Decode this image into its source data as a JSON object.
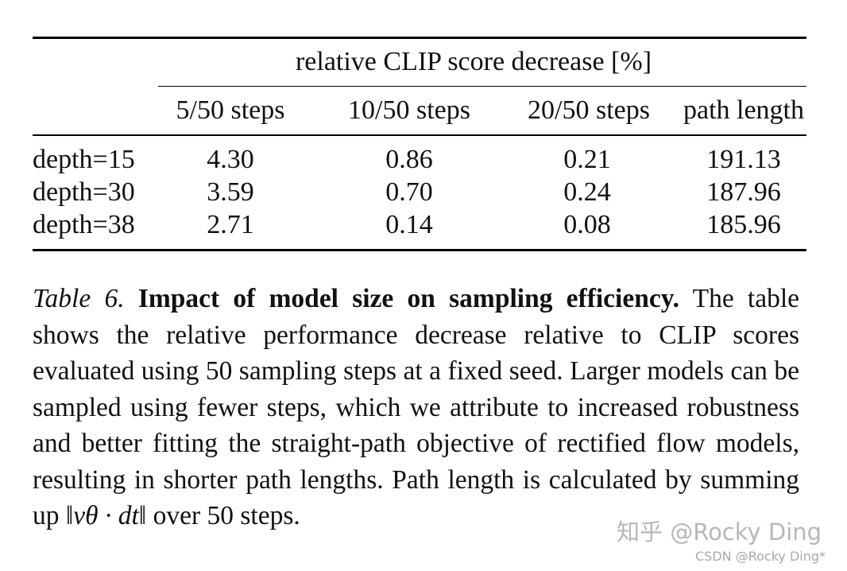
{
  "table": {
    "group_header": "relative CLIP score decrease [%]",
    "columns": [
      "5/50 steps",
      "10/50 steps",
      "20/50 steps",
      "path length"
    ],
    "rows": [
      {
        "label": "depth=15",
        "values": [
          "4.30",
          "0.86",
          "0.21",
          "191.13"
        ]
      },
      {
        "label": "depth=30",
        "values": [
          "3.59",
          "0.70",
          "0.24",
          "187.96"
        ]
      },
      {
        "label": "depth=38",
        "values": [
          "2.71",
          "0.14",
          "0.08",
          "185.96"
        ]
      }
    ]
  },
  "caption": {
    "label": "Table 6.",
    "title": "Impact of model size on sampling efficiency.",
    "body": "The table shows the relative performance decrease relative to CLIP scores evaluated using 50 sampling steps at a fixed seed. Larger models can be sampled using fewer steps, which we attribute to increased robustness and better fitting the straight-path objective of rectified flow models, resulting in shorter path lengths.  Path length is calculated by summing up",
    "formula": "‖vθ · dt‖",
    "tail": "over 50 steps."
  },
  "watermark": {
    "zhihu": "知乎 @Rocky Ding",
    "csdn": "CSDN @Rocky Ding*"
  }
}
